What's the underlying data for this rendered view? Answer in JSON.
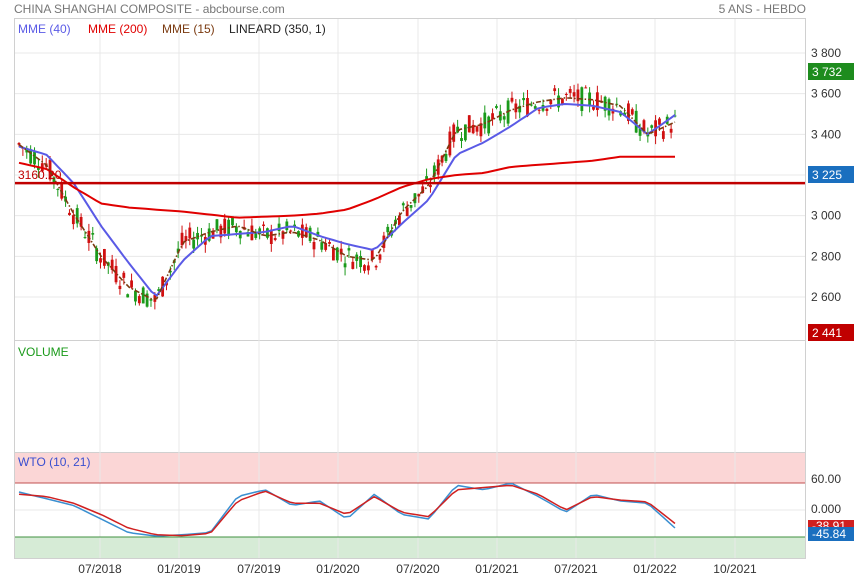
{
  "header": {
    "title": "CHINA SHANGHAI COMPOSITE - abcbourse.com",
    "period": "5 ANS - HEBDO"
  },
  "colors": {
    "ema40": "#5a5ae6",
    "ema200": "#e00000",
    "ema15": "#7a3a10",
    "up": "#1a9a1a",
    "down": "#d01010",
    "support": "#c00000",
    "wto_line1": "#3a8fd0",
    "wto_line2": "#d02020",
    "wto_overbought": "#fbd6d6",
    "wto_oversold": "#d6ebd6",
    "badge_high": "#1e8c1e",
    "badge_last": "#1a6fbf",
    "badge_low": "#c00000"
  },
  "legend": [
    {
      "label": "MME (40)",
      "color": "#5a5ae6"
    },
    {
      "label": "MME (200)",
      "color": "#e00000"
    },
    {
      "label": "MME (15)",
      "color": "#7a3a10"
    },
    {
      "label": "LINEARD (350, 1)",
      "color": "#222222"
    }
  ],
  "volume_panel": {
    "label": "VOLUME"
  },
  "wto_panel": {
    "label": "WTO (10, 21)"
  },
  "chart_data": [
    {
      "type": "candlestick",
      "x_ticks": [
        "07/2018",
        "01/2019",
        "07/2019",
        "01/2020",
        "07/2020",
        "01/2021",
        "07/2021",
        "01/2022",
        "10/2021"
      ],
      "y_ticks": [
        "3 800",
        "3 600",
        "3 400",
        "3 000",
        "2 800",
        "2 600"
      ],
      "ylim": [
        2440,
        3870
      ],
      "support_level": 3160.2,
      "support_label": "3160.20",
      "badges": {
        "high": "3 732",
        "last": "3 225",
        "low": "2 441"
      },
      "series": [
        {
          "name": "MME (40)",
          "values": [
            3340,
            3300,
            3160,
            2950,
            2770,
            2600,
            2780,
            2900,
            2910,
            2920,
            2950,
            2900,
            2860,
            2830,
            2960,
            3080,
            3300,
            3360,
            3440,
            3530,
            3550,
            3540,
            3510,
            3400,
            3495
          ]
        },
        {
          "name": "MME (200)",
          "values": [
            3260,
            3230,
            3140,
            3060,
            3040,
            3030,
            3020,
            3005,
            2990,
            2995,
            3000,
            3010,
            3030,
            3080,
            3140,
            3180,
            3200,
            3210,
            3240,
            3250,
            3260,
            3270,
            3290,
            3290,
            3290
          ]
        },
        {
          "name": "MME (15)",
          "values": [
            3350,
            3250,
            3010,
            2800,
            2650,
            2580,
            2870,
            2920,
            2950,
            2900,
            2920,
            2880,
            2800,
            2780,
            3020,
            3150,
            3420,
            3450,
            3520,
            3560,
            3580,
            3570,
            3540,
            3400,
            3460
          ]
        }
      ]
    },
    {
      "type": "line",
      "name": "WTO (10, 21)",
      "y_ticks": [
        "60.00",
        "0.000"
      ],
      "last_values": {
        "line2": "-38.91",
        "line1": "-45.84"
      },
      "ylim": [
        -70,
        85
      ],
      "overbought": 60,
      "oversold": -60,
      "series": [
        {
          "name": "WTO1",
          "values": [
            40,
            25,
            10,
            -20,
            -50,
            -58,
            -55,
            -50,
            30,
            45,
            10,
            20,
            -20,
            35,
            -10,
            -20,
            55,
            45,
            60,
            30,
            -5,
            35,
            20,
            15,
            -40
          ]
        },
        {
          "name": "WTO2",
          "values": [
            35,
            30,
            15,
            -10,
            -40,
            -55,
            -57,
            -52,
            20,
            42,
            15,
            15,
            -10,
            30,
            -5,
            -15,
            45,
            50,
            55,
            35,
            0,
            30,
            22,
            18,
            -30
          ]
        }
      ]
    }
  ]
}
